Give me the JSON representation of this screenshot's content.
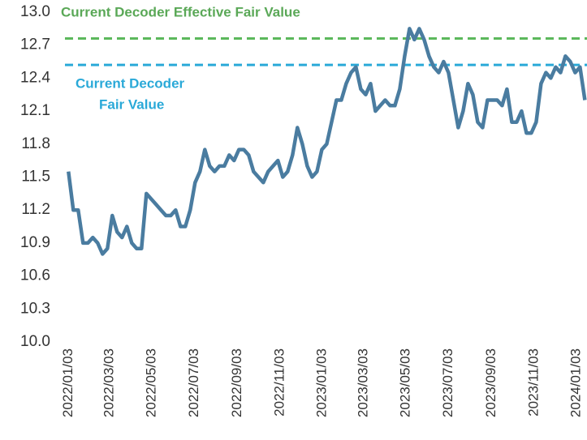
{
  "chart_data": {
    "type": "line",
    "x": [
      "2022/01/03",
      "2022/01/10",
      "2022/01/17",
      "2022/01/24",
      "2022/01/31",
      "2022/02/07",
      "2022/02/14",
      "2022/02/21",
      "2022/02/28",
      "2022/03/07",
      "2022/03/14",
      "2022/03/21",
      "2022/03/28",
      "2022/04/04",
      "2022/04/11",
      "2022/04/18",
      "2022/04/25",
      "2022/05/02",
      "2022/05/09",
      "2022/05/16",
      "2022/05/23",
      "2022/05/30",
      "2022/06/06",
      "2022/06/13",
      "2022/06/20",
      "2022/06/27",
      "2022/07/04",
      "2022/07/11",
      "2022/07/18",
      "2022/07/25",
      "2022/08/01",
      "2022/08/08",
      "2022/08/15",
      "2022/08/22",
      "2022/08/29",
      "2022/09/05",
      "2022/09/12",
      "2022/09/19",
      "2022/09/26",
      "2022/10/03",
      "2022/10/10",
      "2022/10/17",
      "2022/10/24",
      "2022/10/31",
      "2022/11/07",
      "2022/11/14",
      "2022/11/21",
      "2022/11/28",
      "2022/12/05",
      "2022/12/12",
      "2022/12/19",
      "2022/12/26",
      "2023/01/02",
      "2023/01/09",
      "2023/01/16",
      "2023/01/23",
      "2023/01/30",
      "2023/02/06",
      "2023/02/13",
      "2023/02/20",
      "2023/02/27",
      "2023/03/06",
      "2023/03/13",
      "2023/03/20",
      "2023/03/27",
      "2023/04/03",
      "2023/04/10",
      "2023/04/17",
      "2023/04/24",
      "2023/05/01",
      "2023/05/08",
      "2023/05/15",
      "2023/05/22",
      "2023/05/29",
      "2023/06/05",
      "2023/06/12",
      "2023/06/19",
      "2023/06/26",
      "2023/07/03",
      "2023/07/10",
      "2023/07/17",
      "2023/07/24",
      "2023/07/31",
      "2023/08/07",
      "2023/08/14",
      "2023/08/21",
      "2023/08/28",
      "2023/09/04",
      "2023/09/11",
      "2023/09/18",
      "2023/09/25",
      "2023/10/02",
      "2023/10/09",
      "2023/10/16",
      "2023/10/23",
      "2023/10/30",
      "2023/11/06",
      "2023/11/13",
      "2023/11/20",
      "2023/11/27",
      "2023/12/04",
      "2023/12/11",
      "2023/12/18",
      "2023/12/25",
      "2024/01/01",
      "2024/01/08",
      "2024/01/15"
    ],
    "series": [
      {
        "color": "#4a7ca0",
        "values": [
          11.55,
          11.2,
          11.2,
          10.9,
          10.9,
          10.95,
          10.9,
          10.8,
          10.85,
          11.15,
          11.0,
          10.95,
          11.05,
          10.9,
          10.85,
          10.85,
          11.35,
          11.3,
          11.25,
          11.2,
          11.15,
          11.15,
          11.2,
          11.05,
          11.05,
          11.2,
          11.45,
          11.55,
          11.75,
          11.6,
          11.55,
          11.6,
          11.6,
          11.7,
          11.65,
          11.75,
          11.75,
          11.7,
          11.55,
          11.5,
          11.45,
          11.55,
          11.6,
          11.65,
          11.5,
          11.55,
          11.7,
          11.95,
          11.8,
          11.6,
          11.5,
          11.55,
          11.75,
          11.8,
          12.0,
          12.2,
          12.2,
          12.35,
          12.45,
          12.5,
          12.3,
          12.25,
          12.35,
          12.1,
          12.15,
          12.2,
          12.15,
          12.15,
          12.3,
          12.6,
          12.85,
          12.75,
          12.85,
          12.75,
          12.6,
          12.5,
          12.45,
          12.55,
          12.45,
          12.2,
          11.95,
          12.1,
          12.35,
          12.25,
          12.0,
          11.95,
          12.2,
          12.2,
          12.2,
          12.15,
          12.3,
          12.0,
          12.0,
          12.1,
          11.9,
          11.9,
          12.0,
          12.35,
          12.45,
          12.4,
          12.5,
          12.45,
          12.6,
          12.55,
          12.45,
          12.5,
          12.2
        ]
      }
    ],
    "xlim": [
      "2021/12/29",
      "2024/01/18"
    ],
    "xticks": [
      "2022/01/03",
      "2022/03/03",
      "2022/05/03",
      "2022/07/03",
      "2022/09/03",
      "2022/11/03",
      "2023/01/03",
      "2023/03/03",
      "2023/05/03",
      "2023/07/03",
      "2023/09/03",
      "2023/11/03",
      "2024/01/03"
    ],
    "ylim": [
      10.0,
      13.0
    ],
    "yticks": [
      {
        "value": 10.0,
        "label": "10.0"
      },
      10.3,
      10.6,
      10.9,
      11.2,
      11.5,
      11.8,
      12.1,
      12.4,
      12.7,
      {
        "value": 13.0,
        "label": "13.0"
      }
    ],
    "reference_lines": [
      {
        "value": 12.76,
        "color": "#5cb85c",
        "label": [
          "Current Decoder Effective Fair Value"
        ]
      },
      {
        "value": 12.52,
        "color": "#2aa9d8",
        "label": [
          "Current Decoder",
          "Fair Value"
        ]
      }
    ]
  }
}
